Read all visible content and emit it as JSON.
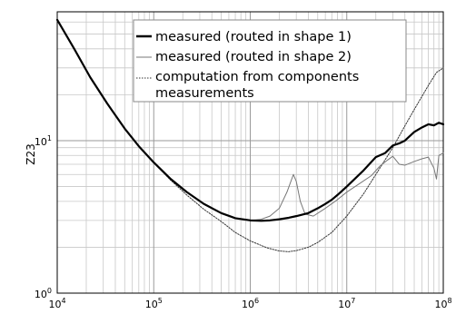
{
  "chart_data": {
    "type": "line",
    "title": "",
    "xlabel": "",
    "ylabel": "Z23",
    "x_scale": "log",
    "y_scale": "log",
    "xlim": [
      10000,
      100000000
    ],
    "ylim": [
      1,
      70
    ],
    "grid": true,
    "legend_position": "top-right",
    "x_ticks": [
      {
        "base": "10",
        "exp": "4",
        "value": 10000
      },
      {
        "base": "10",
        "exp": "5",
        "value": 100000
      },
      {
        "base": "10",
        "exp": "6",
        "value": 1000000
      },
      {
        "base": "10",
        "exp": "7",
        "value": 10000000
      },
      {
        "base": "10",
        "exp": "8",
        "value": 100000000
      }
    ],
    "y_ticks": [
      {
        "base": "10",
        "exp": "0",
        "value": 1
      },
      {
        "base": "10",
        "exp": "1",
        "value": 10
      }
    ],
    "series": [
      {
        "name": "measured (routed in shape 1)",
        "color": "#000000",
        "style": "solid-thick",
        "points": [
          [
            10000,
            62
          ],
          [
            15000,
            40
          ],
          [
            22000,
            26
          ],
          [
            33000,
            17.5
          ],
          [
            50000,
            12
          ],
          [
            70000,
            9.2
          ],
          [
            100000,
            7.2
          ],
          [
            150000,
            5.6
          ],
          [
            220000,
            4.6
          ],
          [
            330000,
            3.85
          ],
          [
            500000,
            3.35
          ],
          [
            700000,
            3.1
          ],
          [
            1000000,
            3.0
          ],
          [
            1300000,
            2.98
          ],
          [
            1600000,
            3.0
          ],
          [
            2000000,
            3.05
          ],
          [
            2500000,
            3.12
          ],
          [
            3000000,
            3.2
          ],
          [
            4000000,
            3.35
          ],
          [
            5000000,
            3.6
          ],
          [
            6000000,
            3.85
          ],
          [
            7000000,
            4.1
          ],
          [
            8000000,
            4.4
          ],
          [
            10000000,
            5.0
          ],
          [
            15000000,
            6.4
          ],
          [
            20000000,
            7.8
          ],
          [
            25000000,
            8.3
          ],
          [
            30000000,
            9.3
          ],
          [
            35000000,
            9.6
          ],
          [
            40000000,
            10.0
          ],
          [
            50000000,
            11.4
          ],
          [
            60000000,
            12.2
          ],
          [
            70000000,
            12.8
          ],
          [
            80000000,
            12.6
          ],
          [
            90000000,
            13.1
          ],
          [
            100000000,
            12.8
          ]
        ]
      },
      {
        "name": "measured (routed in shape 2)",
        "color": "#777777",
        "style": "solid-thin",
        "points": [
          [
            10000,
            62
          ],
          [
            15000,
            40
          ],
          [
            22000,
            26
          ],
          [
            33000,
            17.5
          ],
          [
            50000,
            12
          ],
          [
            70000,
            9.2
          ],
          [
            100000,
            7.2
          ],
          [
            150000,
            5.6
          ],
          [
            220000,
            4.6
          ],
          [
            330000,
            3.85
          ],
          [
            500000,
            3.35
          ],
          [
            700000,
            3.1
          ],
          [
            1000000,
            3.0
          ],
          [
            1300000,
            3.05
          ],
          [
            1600000,
            3.2
          ],
          [
            2000000,
            3.6
          ],
          [
            2400000,
            4.6
          ],
          [
            2800000,
            6.0
          ],
          [
            3000000,
            5.4
          ],
          [
            3300000,
            4.0
          ],
          [
            3700000,
            3.3
          ],
          [
            4500000,
            3.2
          ],
          [
            6000000,
            3.6
          ],
          [
            8000000,
            4.1
          ],
          [
            10000000,
            4.6
          ],
          [
            14000000,
            5.3
          ],
          [
            18000000,
            5.9
          ],
          [
            22000000,
            6.8
          ],
          [
            26000000,
            7.4
          ],
          [
            30000000,
            7.9
          ],
          [
            35000000,
            7.0
          ],
          [
            40000000,
            6.9
          ],
          [
            50000000,
            7.3
          ],
          [
            60000000,
            7.6
          ],
          [
            70000000,
            7.8
          ],
          [
            80000000,
            6.6
          ],
          [
            85000000,
            5.6
          ],
          [
            90000000,
            8.0
          ],
          [
            100000000,
            8.3
          ]
        ]
      },
      {
        "name": "computation from components measurements",
        "color": "#333333",
        "style": "dotted",
        "points": [
          [
            10000,
            62
          ],
          [
            15000,
            40
          ],
          [
            22000,
            26
          ],
          [
            33000,
            17.5
          ],
          [
            50000,
            12
          ],
          [
            70000,
            9.2
          ],
          [
            100000,
            7.2
          ],
          [
            150000,
            5.5
          ],
          [
            220000,
            4.4
          ],
          [
            330000,
            3.55
          ],
          [
            500000,
            2.95
          ],
          [
            700000,
            2.5
          ],
          [
            1000000,
            2.2
          ],
          [
            1500000,
            1.98
          ],
          [
            2000000,
            1.89
          ],
          [
            2500000,
            1.87
          ],
          [
            3000000,
            1.9
          ],
          [
            4000000,
            2.0
          ],
          [
            5000000,
            2.15
          ],
          [
            7000000,
            2.5
          ],
          [
            10000000,
            3.2
          ],
          [
            15000000,
            4.5
          ],
          [
            20000000,
            6.0
          ],
          [
            30000000,
            9.0
          ],
          [
            40000000,
            12.5
          ],
          [
            50000000,
            16.0
          ],
          [
            70000000,
            23.0
          ],
          [
            85000000,
            28.0
          ],
          [
            100000000,
            30.0
          ]
        ]
      }
    ],
    "legend": {
      "line1": "measured (routed in shape 1)",
      "line2": "measured (routed in shape 2)",
      "line3a": "computation from components",
      "line3b": "measurements"
    }
  }
}
